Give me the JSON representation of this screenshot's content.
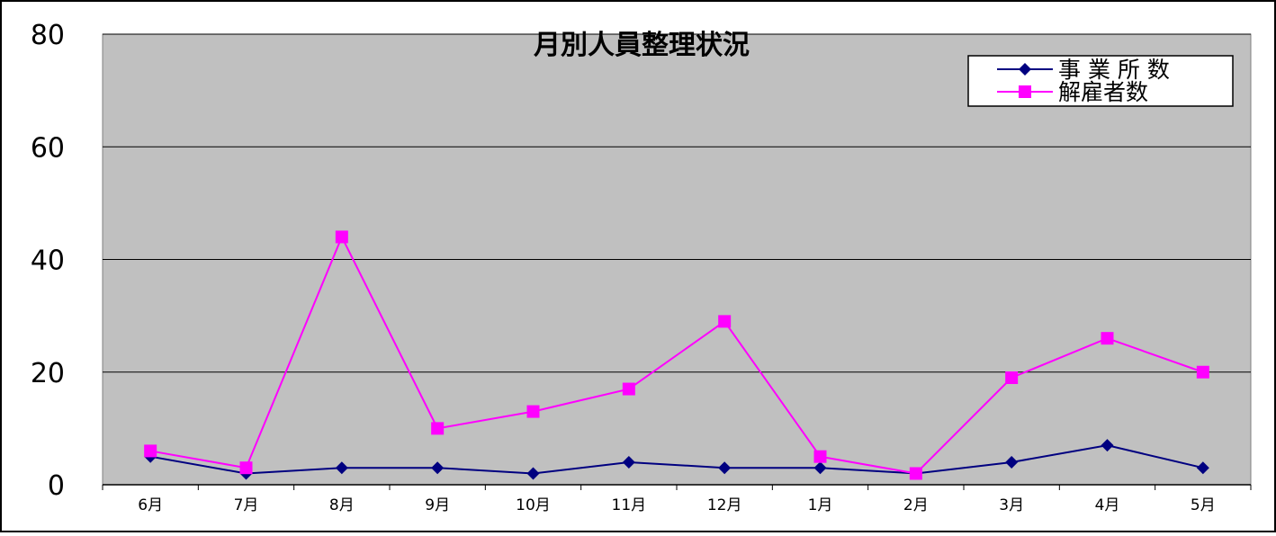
{
  "chart_data": {
    "type": "line",
    "title": "月別人員整理状況",
    "xlabel": "",
    "ylabel": "",
    "categories": [
      "6月",
      "7月",
      "8月",
      "9月",
      "10月",
      "11月",
      "12月",
      "1月",
      "2月",
      "3月",
      "4月",
      "5月"
    ],
    "ylim": [
      0,
      80
    ],
    "yticks": [
      0,
      20,
      40,
      60,
      80
    ],
    "grid": true,
    "legend_position": "top-right",
    "plot_background": "#c0c0c0",
    "series": [
      {
        "name": "事 業 所 数",
        "color": "#000080",
        "marker": "diamond",
        "values": [
          5,
          2,
          3,
          3,
          2,
          4,
          3,
          3,
          2,
          4,
          7,
          3
        ]
      },
      {
        "name": "解雇者数",
        "color": "#ff00ff",
        "marker": "square",
        "values": [
          6,
          3,
          44,
          10,
          13,
          17,
          29,
          5,
          2,
          19,
          26,
          20
        ]
      }
    ]
  }
}
